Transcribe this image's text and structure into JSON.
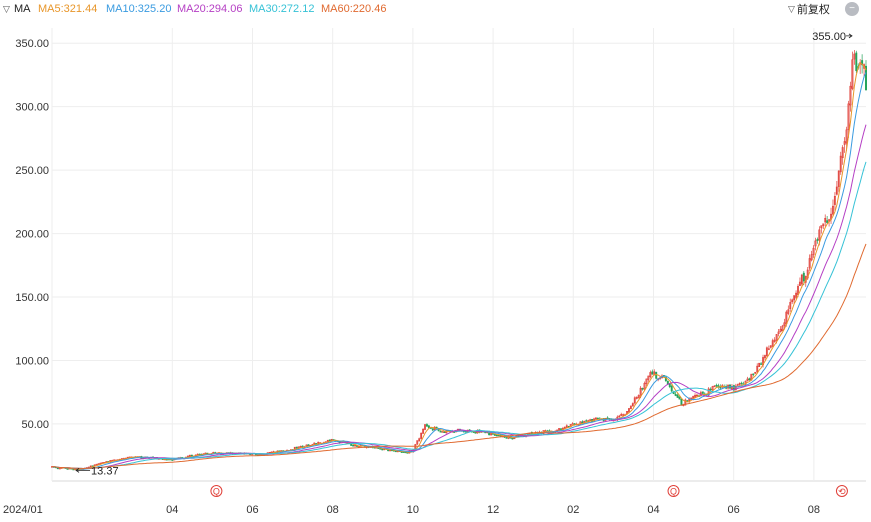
{
  "header": {
    "indicator_label": "MA",
    "ma_values": [
      {
        "name": "MA5",
        "text": "MA5:321.44",
        "color": "#e8962a"
      },
      {
        "name": "MA10",
        "text": "MA10:325.20",
        "color": "#3a9be0"
      },
      {
        "name": "MA20",
        "text": "MA20:294.06",
        "color": "#b53fc4"
      },
      {
        "name": "MA30",
        "text": "MA30:272.12",
        "color": "#36c2d6"
      },
      {
        "name": "MA60",
        "text": "MA60:220.46",
        "color": "#e06a30"
      }
    ],
    "adjust_label": "前复权",
    "icons": {
      "toggle": "chevron-down-icon",
      "adjust": "chevron-down-icon",
      "settings": "minus-circle-icon"
    }
  },
  "chart_data": {
    "type": "candlestick",
    "y_ticks": [
      50,
      100,
      150,
      200,
      250,
      300,
      350
    ],
    "y_tick_labels": [
      "50.00",
      "100.00",
      "150.00",
      "200.00",
      "250.00",
      "300.00",
      "350.00"
    ],
    "ylim": [
      5,
      362
    ],
    "x_ticks": [
      "2024/01",
      "04",
      "06",
      "08",
      "10",
      "12",
      "02",
      "04",
      "06",
      "08"
    ],
    "x_tick_months": [
      0,
      3,
      5,
      7,
      9,
      11,
      13,
      15,
      17,
      19
    ],
    "xlim_months": [
      0,
      20.3
    ],
    "grid": true,
    "colors": {
      "up": "#e0413a",
      "down": "#25a35a",
      "grid": "#eeeeee"
    },
    "annotations": [
      {
        "label": "355.00",
        "value": 355.0,
        "month": 19.95,
        "kind": "high"
      },
      {
        "label": "13.37",
        "value": 13.37,
        "month": 0.6,
        "kind": "low"
      }
    ],
    "event_markers": [
      {
        "label": "Q",
        "month": 4.1
      },
      {
        "label": "Q",
        "month": 15.5
      },
      {
        "label": "⟲",
        "month": 19.7
      }
    ],
    "price_path": [
      [
        0,
        16
      ],
      [
        0.7,
        13.8
      ],
      [
        1.0,
        17
      ],
      [
        1.5,
        21
      ],
      [
        2.0,
        24
      ],
      [
        2.5,
        23
      ],
      [
        3.0,
        22
      ],
      [
        3.5,
        25
      ],
      [
        4.0,
        27
      ],
      [
        4.6,
        27
      ],
      [
        5.2,
        26
      ],
      [
        5.8,
        29
      ],
      [
        6.4,
        33
      ],
      [
        7.0,
        38
      ],
      [
        7.5,
        33
      ],
      [
        8.1,
        31
      ],
      [
        8.8,
        27
      ],
      [
        9.0,
        29
      ],
      [
        9.3,
        48
      ],
      [
        9.8,
        44
      ],
      [
        10.3,
        45
      ],
      [
        11.0,
        42
      ],
      [
        11.5,
        39
      ],
      [
        12.0,
        43
      ],
      [
        12.6,
        45
      ],
      [
        13.0,
        49
      ],
      [
        13.6,
        54
      ],
      [
        14.0,
        54
      ],
      [
        14.3,
        58
      ],
      [
        14.6,
        72
      ],
      [
        14.9,
        90
      ],
      [
        15.3,
        85
      ],
      [
        15.7,
        66
      ],
      [
        16.1,
        72
      ],
      [
        16.6,
        79
      ],
      [
        17.0,
        78
      ],
      [
        17.3,
        83
      ],
      [
        17.6,
        95
      ],
      [
        17.9,
        112
      ],
      [
        18.2,
        127
      ],
      [
        18.5,
        148
      ],
      [
        18.8,
        170
      ],
      [
        19.1,
        195
      ],
      [
        19.4,
        215
      ],
      [
        19.6,
        240
      ],
      [
        19.8,
        285
      ],
      [
        20.0,
        340
      ],
      [
        20.15,
        330
      ],
      [
        20.3,
        322
      ]
    ],
    "moving_averages": [
      {
        "name": "MA5",
        "color": "#e8962a",
        "window": 5
      },
      {
        "name": "MA10",
        "color": "#3a9be0",
        "window": 10
      },
      {
        "name": "MA20",
        "color": "#b53fc4",
        "window": 20
      },
      {
        "name": "MA30",
        "color": "#36c2d6",
        "window": 30
      },
      {
        "name": "MA60",
        "color": "#e06a30",
        "window": 60
      }
    ]
  }
}
